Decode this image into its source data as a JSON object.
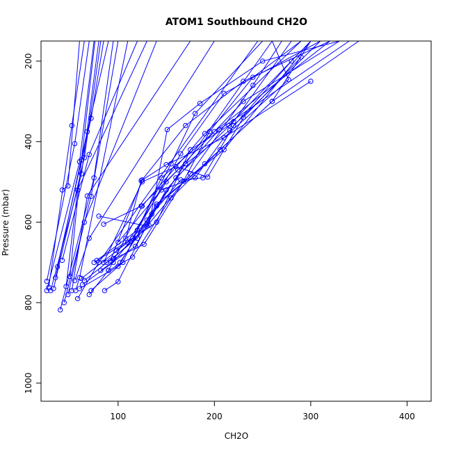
{
  "chart_data": {
    "type": "line",
    "title": "ATOM1 Southbound CH2O",
    "xlabel": "CH2O",
    "ylabel": "Pressure (mbar)",
    "xlim": [
      20,
      425
    ],
    "ylim": [
      1045,
      150
    ],
    "y_reversed": true,
    "x_ticks": [
      100,
      200,
      300,
      400
    ],
    "y_ticks": [
      200,
      400,
      600,
      800,
      1000
    ],
    "markers": "open-circle",
    "color": "#0000ff",
    "series": [
      {
        "points": [
          [
            26,
            770
          ],
          [
            60,
            450
          ],
          [
            75,
            150
          ]
        ]
      },
      {
        "points": [
          [
            26,
            747
          ],
          [
            55,
            405
          ],
          [
            70,
            150
          ]
        ]
      },
      {
        "points": [
          [
            28,
            762
          ],
          [
            52,
            360
          ],
          [
            65,
            150
          ]
        ]
      },
      {
        "points": [
          [
            30,
            770
          ],
          [
            62,
            480
          ],
          [
            80,
            150
          ]
        ]
      },
      {
        "points": [
          [
            33,
            765
          ],
          [
            65,
            440
          ],
          [
            82,
            150
          ]
        ]
      },
      {
        "points": [
          [
            35,
            738
          ],
          [
            68,
            375
          ],
          [
            90,
            150
          ]
        ]
      },
      {
        "points": [
          [
            37,
            711
          ],
          [
            72,
            342
          ],
          [
            85,
            150
          ]
        ]
      },
      {
        "points": [
          [
            40,
            818
          ],
          [
            75,
            490
          ],
          [
            95,
            150
          ]
        ]
      },
      {
        "points": [
          [
            42,
            695
          ],
          [
            70,
            432
          ],
          [
            120,
            150
          ]
        ]
      },
      {
        "points": [
          [
            42,
            520
          ],
          [
            48,
            510
          ],
          [
            60,
            150
          ]
        ]
      },
      {
        "points": [
          [
            44,
            800
          ],
          [
            72,
            536
          ],
          [
            100,
            150
          ]
        ]
      },
      {
        "points": [
          [
            46,
            760
          ],
          [
            58,
            520
          ],
          [
            130,
            150
          ]
        ]
      },
      {
        "points": [
          [
            48,
            780
          ],
          [
            65,
            600
          ],
          [
            140,
            150
          ]
        ]
      },
      {
        "points": [
          [
            50,
            735
          ],
          [
            62,
            445
          ],
          [
            76,
            150
          ]
        ]
      },
      {
        "points": [
          [
            52,
            770
          ],
          [
            68,
            535
          ],
          [
            175,
            150
          ]
        ]
      },
      {
        "points": [
          [
            55,
            745
          ],
          [
            70,
            640
          ],
          [
            200,
            150
          ]
        ]
      },
      {
        "points": [
          [
            58,
            790
          ],
          [
            80,
            700
          ],
          [
            245,
            150
          ]
        ]
      },
      {
        "points": [
          [
            56,
            770
          ],
          [
            60,
            738
          ],
          [
            110,
            150
          ]
        ]
      },
      {
        "points": [
          [
            60,
            765
          ],
          [
            100,
            710
          ],
          [
            140,
            555
          ],
          [
            210,
            420
          ],
          [
            300,
            150
          ]
        ]
      },
      {
        "points": [
          [
            62,
            740
          ],
          [
            110,
            650
          ],
          [
            150,
            500
          ],
          [
            230,
            300
          ],
          [
            330,
            150
          ]
        ]
      },
      {
        "points": [
          [
            63,
            755
          ],
          [
            95,
            700
          ],
          [
            130,
            595
          ],
          [
            170,
            455
          ],
          [
            260,
            150
          ]
        ]
      },
      {
        "points": [
          [
            65,
            745
          ],
          [
            120,
            640
          ],
          [
            160,
            490
          ],
          [
            220,
            350
          ],
          [
            280,
            150
          ]
        ]
      },
      {
        "points": [
          [
            70,
            780
          ],
          [
            90,
            720
          ],
          [
            125,
            560
          ],
          [
            190,
            380
          ],
          [
            290,
            150
          ]
        ]
      },
      {
        "points": [
          [
            72,
            770
          ],
          [
            105,
            700
          ],
          [
            145,
            490
          ],
          [
            200,
            375
          ],
          [
            320,
            150
          ]
        ]
      },
      {
        "points": [
          [
            75,
            700
          ],
          [
            115,
            640
          ],
          [
            155,
            455
          ],
          [
            180,
            330
          ],
          [
            250,
            150
          ]
        ]
      },
      {
        "points": [
          [
            78,
            695
          ],
          [
            120,
            620
          ],
          [
            165,
            430
          ],
          [
            210,
            280
          ],
          [
            310,
            150
          ]
        ]
      },
      {
        "points": [
          [
            80,
            585
          ],
          [
            130,
            610
          ],
          [
            175,
            480
          ],
          [
            240,
            260
          ],
          [
            270,
            150
          ]
        ]
      },
      {
        "points": [
          [
            82,
            720
          ],
          [
            118,
            660
          ],
          [
            150,
            520
          ],
          [
            205,
            370
          ],
          [
            340,
            150
          ]
        ]
      },
      {
        "points": [
          [
            85,
            605
          ],
          [
            124,
            560
          ],
          [
            162,
            470
          ],
          [
            216,
            372
          ],
          [
            280,
            200
          ]
        ]
      },
      {
        "points": [
          [
            86,
            770
          ],
          [
            100,
            748
          ],
          [
            140,
            560
          ],
          [
            190,
            455
          ],
          [
            260,
            300
          ],
          [
            300,
            150
          ]
        ]
      },
      {
        "points": [
          [
            88,
            700
          ],
          [
            127,
            655
          ],
          [
            168,
            498
          ],
          [
            195,
            375
          ],
          [
            240,
            240
          ],
          [
            290,
            150
          ]
        ]
      },
      {
        "points": [
          [
            90,
            720
          ],
          [
            115,
            687
          ],
          [
            155,
            540
          ],
          [
            206,
            420
          ],
          [
            260,
            300
          ],
          [
            350,
            150
          ]
        ]
      },
      {
        "points": [
          [
            92,
            696
          ],
          [
            125,
            495
          ],
          [
            170,
            360
          ],
          [
            230,
            250
          ],
          [
            320,
            150
          ]
        ]
      },
      {
        "points": [
          [
            95,
            690
          ],
          [
            132,
            608
          ],
          [
            151,
            370
          ],
          [
            185,
            305
          ],
          [
            250,
            200
          ],
          [
            330,
            150
          ]
        ]
      },
      {
        "points": [
          [
            98,
            670
          ],
          [
            140,
            600
          ],
          [
            175,
            420
          ],
          [
            215,
            360
          ],
          [
            300,
            150
          ]
        ]
      },
      {
        "points": [
          [
            100,
            650
          ],
          [
            145,
            520
          ],
          [
            180,
            490
          ],
          [
            210,
            390
          ],
          [
            277,
            246
          ],
          [
            260,
            150
          ]
        ]
      },
      {
        "points": [
          [
            102,
            700
          ],
          [
            135,
            580
          ],
          [
            165,
            495
          ],
          [
            188,
            490
          ],
          [
            220,
            360
          ],
          [
            310,
            150
          ]
        ]
      },
      {
        "points": [
          [
            85,
            700
          ],
          [
            125,
            500
          ],
          [
            160,
            462
          ],
          [
            193,
            488
          ],
          [
            230,
            340
          ],
          [
            290,
            190
          ]
        ]
      },
      {
        "points": [
          [
            108,
            640
          ],
          [
            124,
            497
          ],
          [
            150,
            457
          ],
          [
            210,
            390
          ],
          [
            300,
            250
          ]
        ]
      }
    ]
  }
}
